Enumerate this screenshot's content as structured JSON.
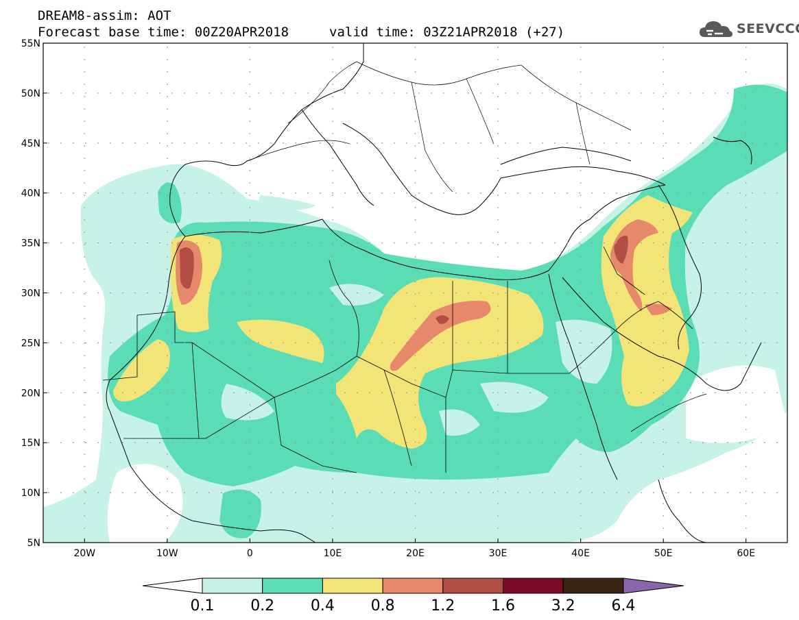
{
  "title": {
    "line1": "DREAM8-assim: AOT",
    "line2": "Forecast base time: 00Z20APR2018",
    "valid": "valid time: 03Z21APR2018 (+27)"
  },
  "logo": {
    "text": "SEEVCCC",
    "icon": "cloud-icon",
    "color": "#555555"
  },
  "map": {
    "lon_range": [
      -25,
      65
    ],
    "lat_range": [
      5,
      55
    ],
    "lat_ticks": [
      "55N",
      "50N",
      "45N",
      "40N",
      "35N",
      "30N",
      "25N",
      "20N",
      "15N",
      "10N",
      "5N"
    ],
    "lon_ticks": [
      "20W",
      "10W",
      "0",
      "10E",
      "20E",
      "30E",
      "40E",
      "50E",
      "60E"
    ]
  },
  "colorbar": {
    "labels": [
      "0.1",
      "0.2",
      "0.4",
      "0.8",
      "1.2",
      "1.6",
      "3.2",
      "6.4"
    ],
    "colors": [
      "#ffffff",
      "#c6f2e8",
      "#5adcb4",
      "#f2e477",
      "#e5896a",
      "#b24e44",
      "#7a0a25",
      "#3a2413",
      "#8a66ad"
    ]
  }
}
